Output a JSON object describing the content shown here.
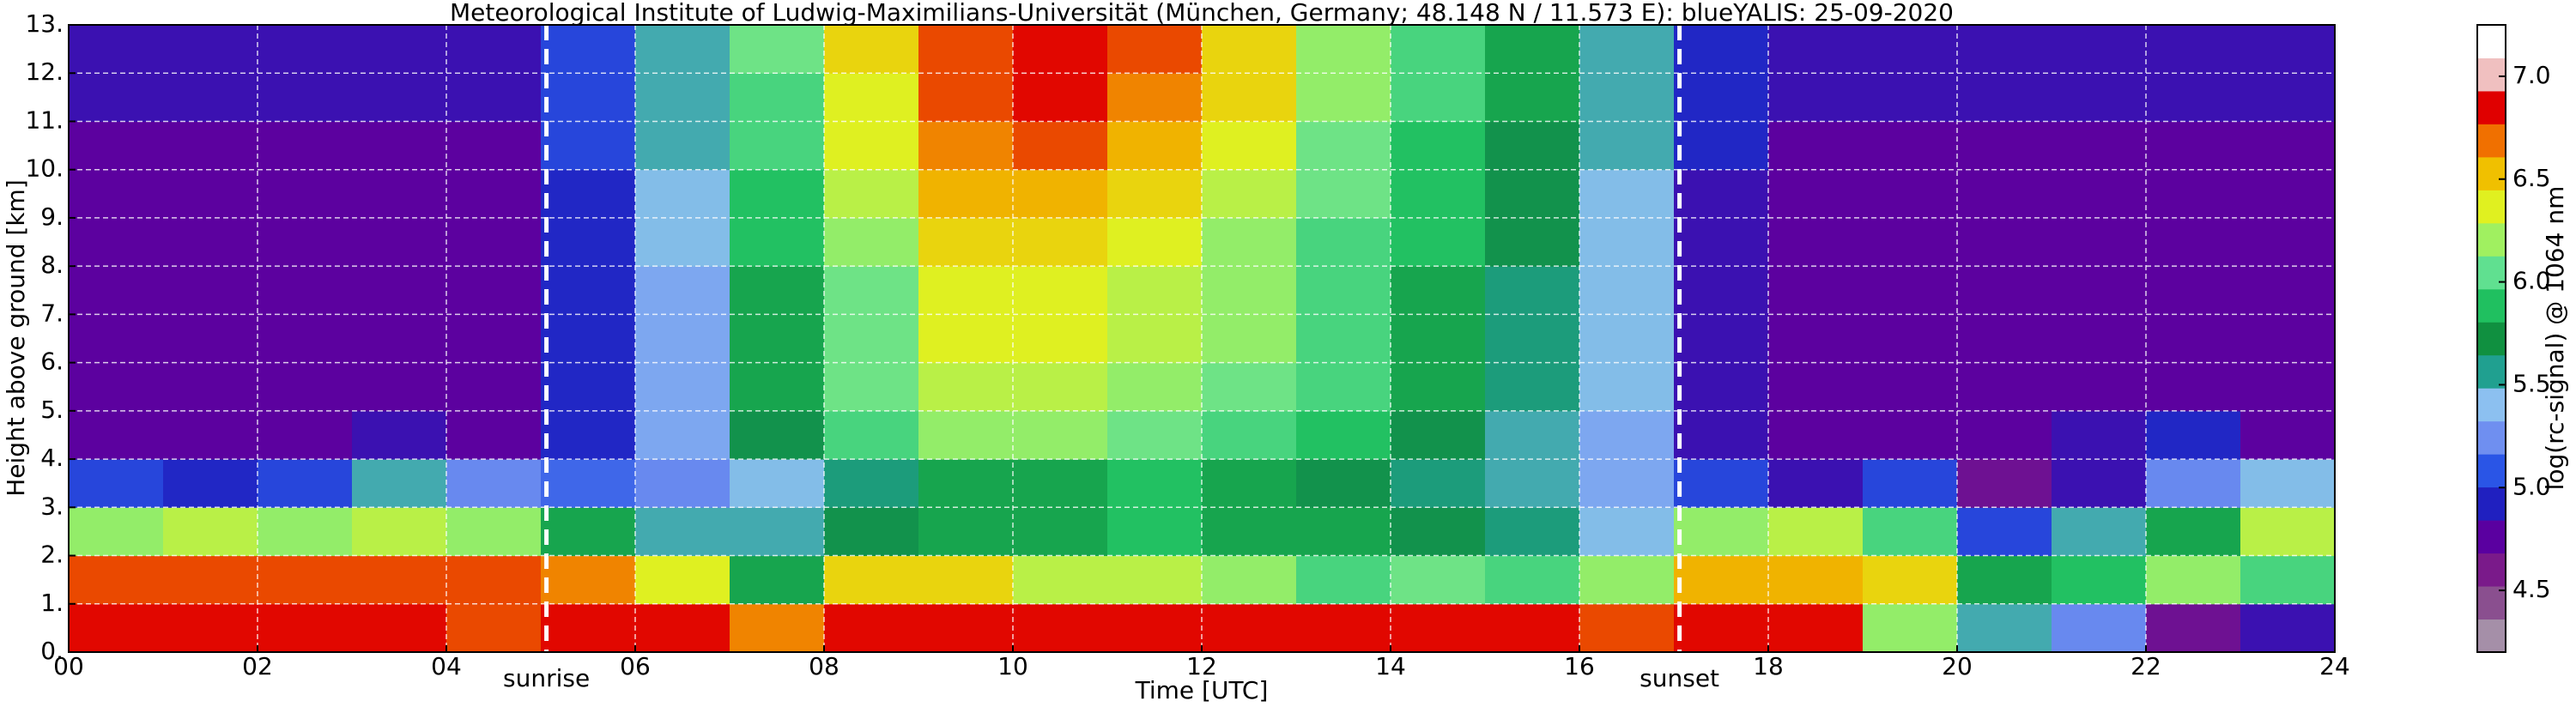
{
  "chart_data": {
    "type": "heatmap",
    "title": "Meteorological Institute of Ludwig-Maximilians-Universität (München, Germany; 48.148 N / 11.573 E):    blueYALIS: 25-09-2020",
    "x_label": "Time [UTC]",
    "y_label": "Height above ground [km]",
    "xlim": [
      0,
      24
    ],
    "ylim": [
      0,
      13
    ],
    "xticks": [
      {
        "value": 0,
        "label": "00"
      },
      {
        "value": 2,
        "label": "02"
      },
      {
        "value": 4,
        "label": "04"
      },
      {
        "value": 6,
        "label": "06"
      },
      {
        "value": 8,
        "label": "08"
      },
      {
        "value": 10,
        "label": "10"
      },
      {
        "value": 12,
        "label": "12"
      },
      {
        "value": 14,
        "label": "14"
      },
      {
        "value": 16,
        "label": "16"
      },
      {
        "value": 18,
        "label": "18"
      },
      {
        "value": 20,
        "label": "20"
      },
      {
        "value": 22,
        "label": "22"
      },
      {
        "value": 24,
        "label": "24"
      }
    ],
    "yticks": [
      {
        "value": 0,
        "label": "0."
      },
      {
        "value": 1,
        "label": "1."
      },
      {
        "value": 2,
        "label": "2."
      },
      {
        "value": 3,
        "label": "3."
      },
      {
        "value": 4,
        "label": "4."
      },
      {
        "value": 5,
        "label": "5."
      },
      {
        "value": 6,
        "label": "6."
      },
      {
        "value": 7,
        "label": "7."
      },
      {
        "value": 8,
        "label": "8."
      },
      {
        "value": 9,
        "label": "9."
      },
      {
        "value": 10,
        "label": "10."
      },
      {
        "value": 11,
        "label": "11."
      },
      {
        "value": 12,
        "label": "12."
      },
      {
        "value": 13,
        "label": "13."
      }
    ],
    "grid": true,
    "x": [
      0.5,
      1.5,
      2.5,
      3.5,
      4.5,
      5.5,
      6.5,
      7.5,
      8.5,
      9.5,
      10.5,
      11.5,
      12.5,
      13.5,
      14.5,
      15.5,
      16.5,
      17.5,
      18.5,
      19.5,
      20.5,
      21.5,
      22.5,
      23.5
    ],
    "y": [
      0.5,
      1.5,
      2.5,
      3.5,
      4.5,
      5.5,
      6.5,
      7.5,
      8.5,
      9.5,
      10.5,
      11.5,
      12.5
    ],
    "z": [
      [
        6.9,
        6.9,
        6.9,
        6.9,
        6.8,
        6.9,
        6.9,
        6.7,
        6.9,
        6.9,
        6.9,
        6.9,
        6.9,
        6.9,
        6.9,
        6.9,
        6.8,
        6.9,
        6.9,
        6.2,
        5.5,
        5.2,
        4.6,
        4.8
      ],
      [
        6.8,
        6.8,
        6.8,
        6.8,
        6.8,
        6.7,
        6.4,
        5.8,
        6.5,
        6.5,
        6.3,
        6.3,
        6.2,
        6.0,
        6.1,
        6.0,
        6.2,
        6.6,
        6.6,
        6.5,
        5.8,
        5.9,
        6.2,
        6.0
      ],
      [
        6.2,
        6.3,
        6.2,
        6.3,
        6.2,
        5.8,
        5.5,
        5.5,
        5.7,
        5.8,
        5.8,
        5.9,
        5.8,
        5.8,
        5.7,
        5.6,
        5.4,
        6.2,
        6.3,
        6.0,
        5.0,
        5.5,
        5.8,
        6.3
      ],
      [
        5.0,
        4.9,
        5.0,
        5.5,
        5.2,
        5.1,
        5.2,
        5.4,
        5.6,
        5.8,
        5.8,
        5.9,
        5.8,
        5.7,
        5.6,
        5.5,
        5.3,
        5.0,
        4.8,
        5.0,
        4.6,
        4.8,
        5.2,
        5.4
      ],
      [
        4.7,
        4.7,
        4.7,
        4.8,
        4.7,
        4.9,
        5.3,
        5.7,
        6.0,
        6.2,
        6.2,
        6.1,
        6.0,
        5.9,
        5.7,
        5.5,
        5.3,
        4.8,
        4.7,
        4.7,
        4.7,
        4.8,
        4.9,
        4.7
      ],
      [
        4.7,
        4.7,
        4.7,
        4.7,
        4.7,
        4.9,
        5.3,
        5.8,
        6.1,
        6.3,
        6.3,
        6.2,
        6.1,
        6.0,
        5.8,
        5.6,
        5.4,
        4.8,
        4.7,
        4.7,
        4.7,
        4.7,
        4.7,
        4.7
      ],
      [
        4.7,
        4.7,
        4.7,
        4.7,
        4.7,
        4.9,
        5.3,
        5.8,
        6.1,
        6.4,
        6.4,
        6.3,
        6.2,
        6.0,
        5.8,
        5.6,
        5.4,
        4.8,
        4.7,
        4.7,
        4.7,
        4.7,
        4.7,
        4.7
      ],
      [
        4.7,
        4.7,
        4.7,
        4.7,
        4.7,
        4.9,
        5.3,
        5.8,
        6.1,
        6.4,
        6.4,
        6.3,
        6.2,
        6.0,
        5.8,
        5.6,
        5.4,
        4.8,
        4.7,
        4.7,
        4.7,
        4.7,
        4.7,
        4.7
      ],
      [
        4.7,
        4.7,
        4.7,
        4.7,
        4.7,
        4.9,
        5.4,
        5.9,
        6.2,
        6.5,
        6.5,
        6.4,
        6.2,
        6.0,
        5.9,
        5.7,
        5.4,
        4.8,
        4.7,
        4.7,
        4.7,
        4.7,
        4.7,
        4.7
      ],
      [
        4.7,
        4.7,
        4.7,
        4.7,
        4.7,
        4.9,
        5.4,
        5.9,
        6.3,
        6.6,
        6.6,
        6.5,
        6.3,
        6.1,
        5.9,
        5.7,
        5.4,
        4.8,
        4.7,
        4.7,
        4.7,
        4.7,
        4.7,
        4.7
      ],
      [
        4.7,
        4.7,
        4.7,
        4.7,
        4.7,
        5.0,
        5.5,
        6.0,
        6.4,
        6.7,
        6.8,
        6.6,
        6.4,
        6.1,
        5.9,
        5.7,
        5.5,
        4.9,
        4.7,
        4.7,
        4.7,
        4.7,
        4.7,
        4.7
      ],
      [
        4.8,
        4.8,
        4.8,
        4.8,
        4.8,
        5.0,
        5.5,
        6.0,
        6.4,
        6.8,
        6.9,
        6.7,
        6.5,
        6.2,
        6.0,
        5.8,
        5.5,
        4.9,
        4.8,
        4.8,
        4.8,
        4.8,
        4.8,
        4.8
      ],
      [
        4.8,
        4.8,
        4.8,
        4.8,
        4.8,
        5.0,
        5.5,
        6.1,
        6.5,
        6.8,
        6.9,
        6.8,
        6.5,
        6.2,
        6.0,
        5.8,
        5.5,
        4.9,
        4.8,
        4.8,
        4.8,
        4.8,
        4.8,
        4.8
      ]
    ],
    "colorbar": {
      "label": "log(rc-signal) @ 1064 nm",
      "lim": [
        4.2,
        7.25
      ],
      "ticks": [
        4.5,
        {
          "value": 5,
          "label": "5.0"
        },
        5.5,
        {
          "value": 6,
          "label": "6.0"
        },
        6.5,
        {
          "value": 7,
          "label": "7.0"
        }
      ],
      "colors": [
        "#a58fa8",
        "#8a4f8f",
        "#7a1a8a",
        "#5a00a0",
        "#2020c0",
        "#2a55e6",
        "#6f8ff0",
        "#8cc0f0",
        "#20a090",
        "#109040",
        "#20c060",
        "#60e090",
        "#a0f060",
        "#e0f020",
        "#f0c000",
        "#f07000",
        "#e00000",
        "#f0c0c0",
        "#ffffff"
      ]
    },
    "annotations": [
      {
        "x": 5.06,
        "label": "sunrise"
      },
      {
        "x": 17.06,
        "label": "sunset"
      }
    ]
  }
}
